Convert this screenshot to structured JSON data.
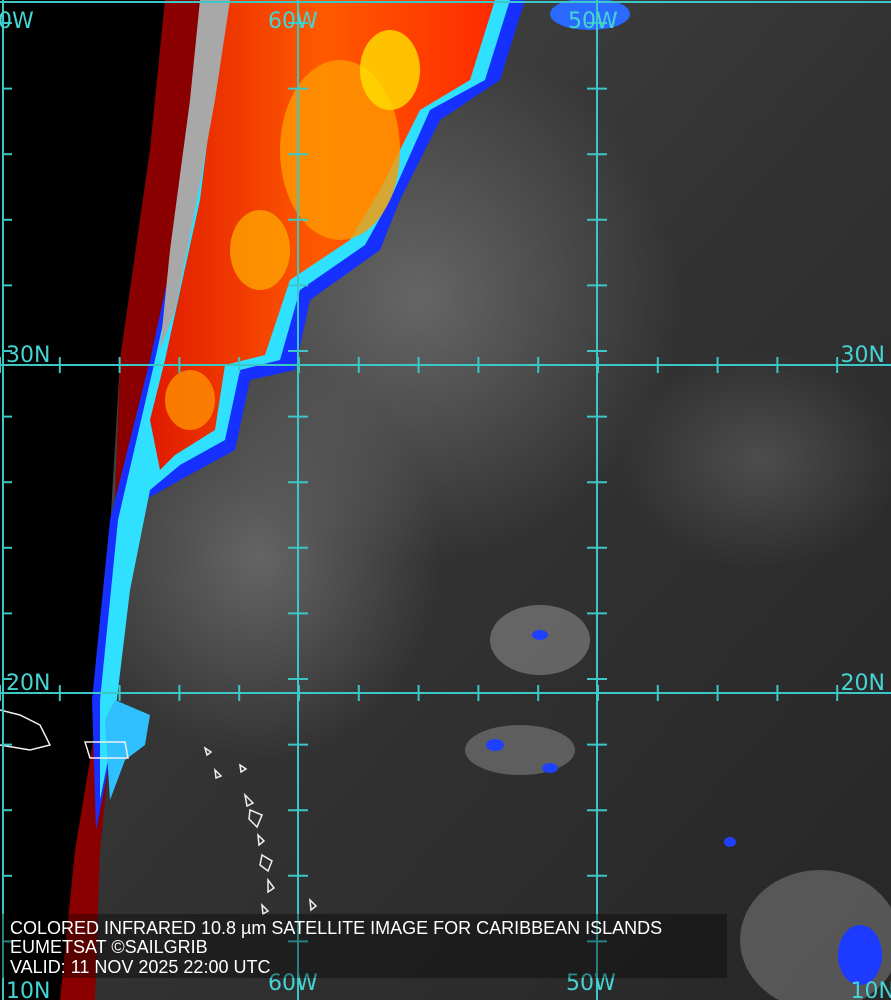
{
  "grid_labels": {
    "top": [
      "0W",
      "60W",
      "50W"
    ],
    "left": [
      "30N",
      "20N",
      "10N"
    ],
    "right": [
      "30N",
      "20N",
      "10N"
    ],
    "bottom": [
      "60W",
      "50W"
    ]
  },
  "caption": {
    "lines": [
      "COLORED INFRARED 10.8 µm SATELLITE IMAGE FOR CARIBBEAN ISLANDS",
      "EUMETSAT ©SAILGRIB",
      "VALID:  11 NOV 2025 22:00 UTC"
    ]
  }
}
